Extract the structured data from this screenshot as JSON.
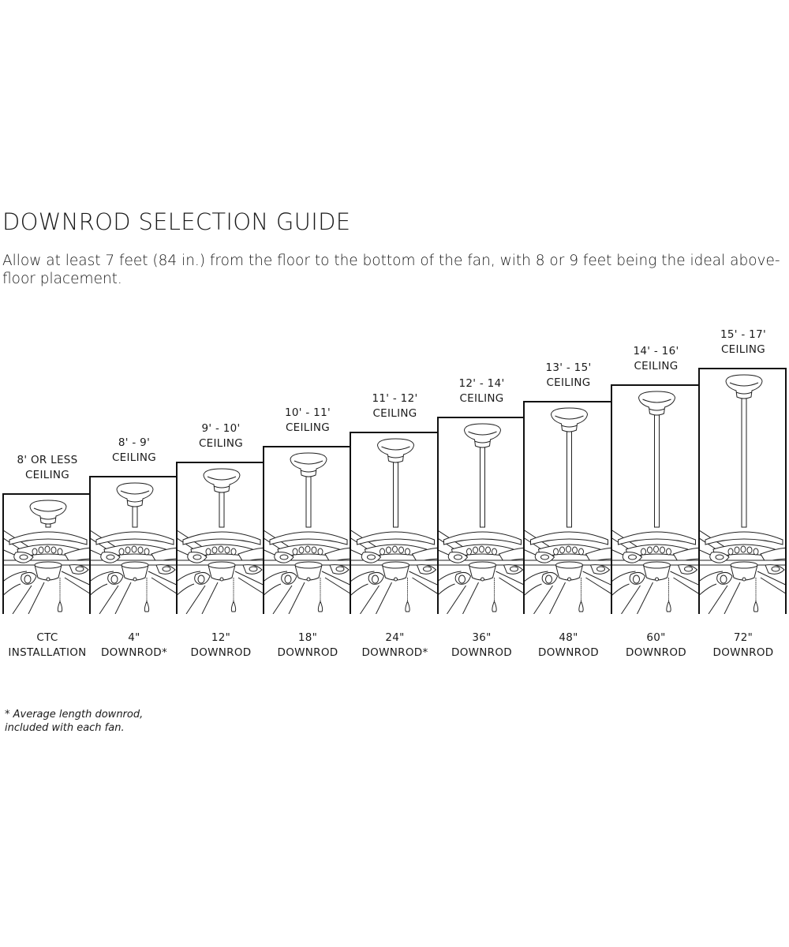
{
  "title": "DOWNROD SELECTION GUIDE",
  "intro": "Allow at least 7 feet (84 in.) from the floor to the bottom of the fan, with 8 or 9 feet being the ideal above-floor placement.",
  "panels": [
    {
      "ceiling_line1": "8' OR LESS",
      "ceiling_line2": "CEILING",
      "rod_line1": "CTC",
      "rod_line2": "INSTALLATION"
    },
    {
      "ceiling_line1": "8' - 9'",
      "ceiling_line2": "CEILING",
      "rod_line1": "4\"",
      "rod_line2": "DOWNROD*"
    },
    {
      "ceiling_line1": "9' - 10'",
      "ceiling_line2": "CEILING",
      "rod_line1": "12\"",
      "rod_line2": "DOWNROD"
    },
    {
      "ceiling_line1": "10' - 11'",
      "ceiling_line2": "CEILING",
      "rod_line1": "18\"",
      "rod_line2": "DOWNROD"
    },
    {
      "ceiling_line1": "11' - 12'",
      "ceiling_line2": "CEILING",
      "rod_line1": "24\"",
      "rod_line2": "DOWNROD*"
    },
    {
      "ceiling_line1": "12' - 14'",
      "ceiling_line2": "CEILING",
      "rod_line1": "36\"",
      "rod_line2": "DOWNROD"
    },
    {
      "ceiling_line1": "13' - 15'",
      "ceiling_line2": "CEILING",
      "rod_line1": "48\"",
      "rod_line2": "DOWNROD"
    },
    {
      "ceiling_line1": "14' - 16'",
      "ceiling_line2": "CEILING",
      "rod_line1": "60\"",
      "rod_line2": "DOWNROD"
    },
    {
      "ceiling_line1": "15' - 17'",
      "ceiling_line2": "CEILING",
      "rod_line1": "72\"",
      "rod_line2": "DOWNROD"
    }
  ],
  "footnote_line1": "* Average length downrod,",
  "footnote_line2": "included with each fan."
}
